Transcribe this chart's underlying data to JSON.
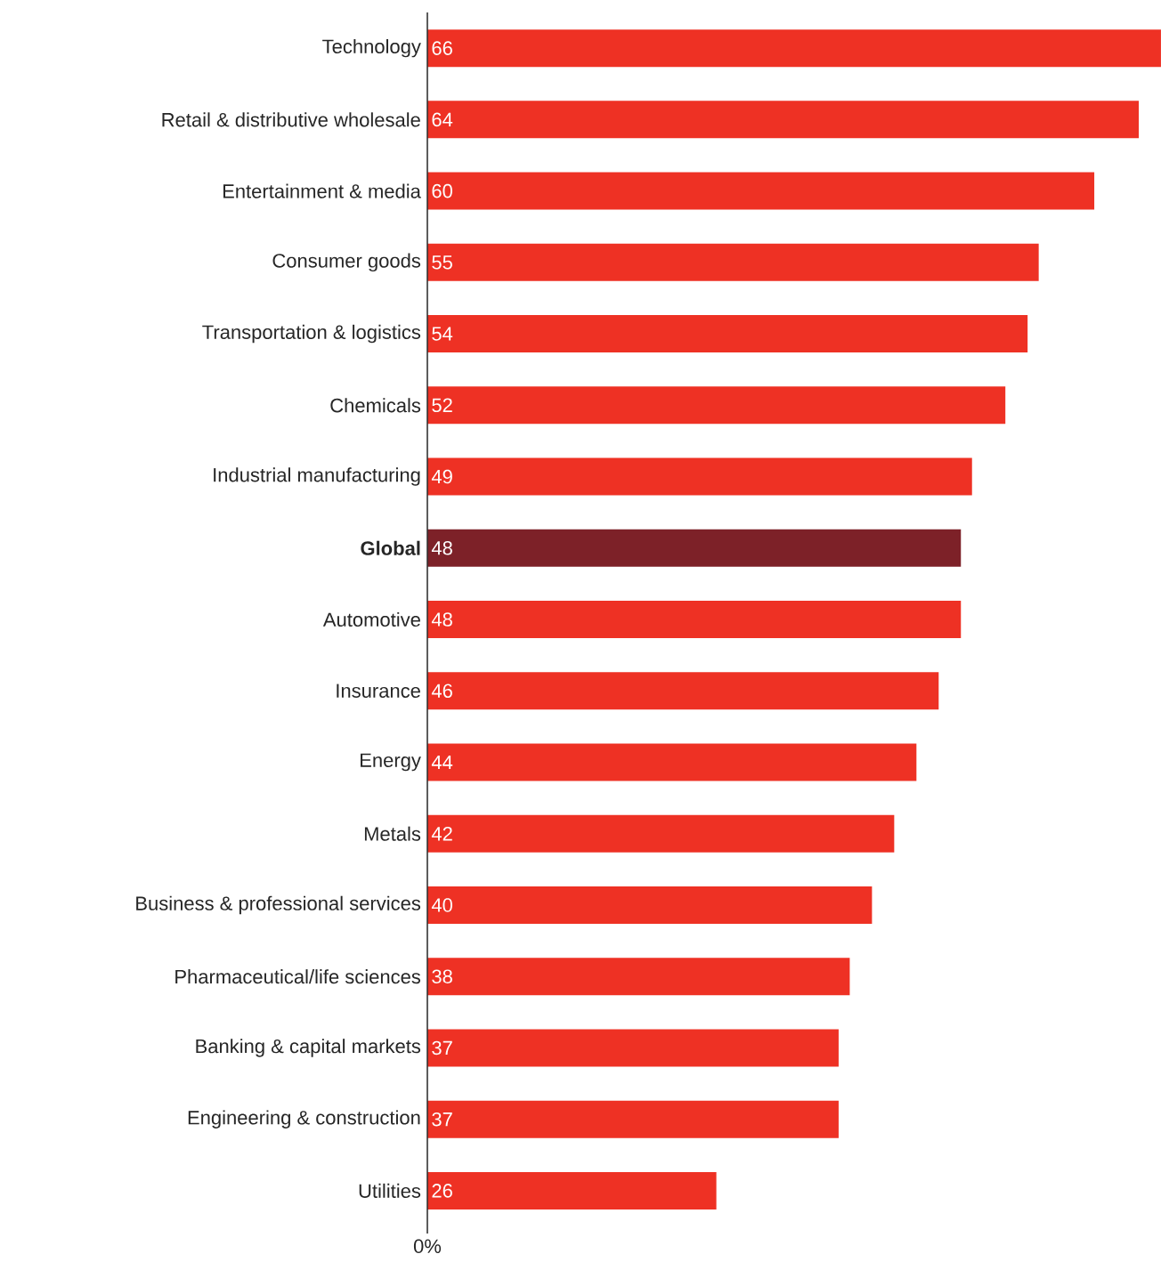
{
  "chart_data": {
    "type": "bar",
    "orientation": "horizontal",
    "categories": [
      "Technology",
      "Retail & distributive wholesale",
      "Entertainment & media",
      "Consumer goods",
      "Transportation & logistics",
      "Chemicals",
      "Industrial manufacturing",
      "**Global**",
      "Automotive",
      "Insurance",
      "Energy",
      "Metals",
      "Business & professional services",
      "Pharmaceutical/life sciences",
      "Banking & capital markets",
      "Engineering & construction",
      "Utilities"
    ],
    "values": [
      66,
      64,
      60,
      55,
      54,
      52,
      49,
      48,
      48,
      46,
      44,
      42,
      40,
      38,
      37,
      37,
      26
    ],
    "colors": [
      "#ee3124",
      "#ee3124",
      "#ee3124",
      "#ee3124",
      "#ee3124",
      "#ee3124",
      "#ee3124",
      "#7d2128",
      "#ee3124",
      "#ee3124",
      "#ee3124",
      "#ee3124",
      "#ee3124",
      "#ee3124",
      "#ee3124",
      "#ee3124",
      "#ee3124"
    ],
    "annotations": [
      "0%"
    ],
    "data_labels": true
  }
}
